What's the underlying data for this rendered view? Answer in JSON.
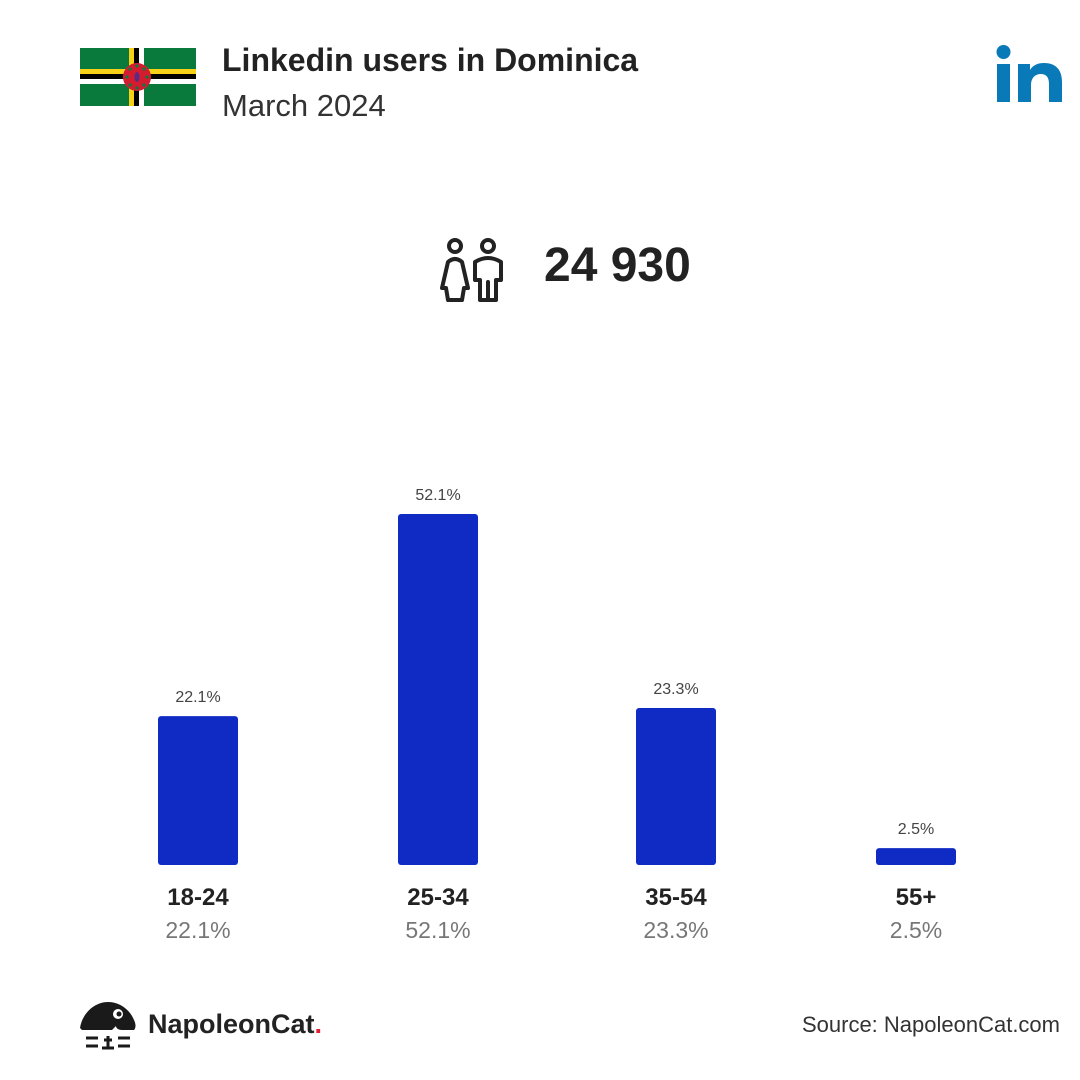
{
  "header": {
    "title": "Linkedin users in Dominica",
    "subtitle": "March 2024"
  },
  "total_users": "24 930",
  "colors": {
    "bar": "#0f2bc4",
    "linkedin": "#0a79b8",
    "flag_green": "#0a7a3c",
    "flag_red": "#d41c30"
  },
  "icons": {
    "flag": "dominica-flag-icon",
    "linkedin": "linkedin-logo-icon",
    "users": "male-female-users-icon",
    "brand": "napoleoncat-logo-icon"
  },
  "chart_data": {
    "type": "bar",
    "title": "",
    "xlabel": "",
    "ylabel": "",
    "categories": [
      "18-24",
      "25-34",
      "35-54",
      "55+"
    ],
    "values": [
      22.1,
      52.1,
      23.3,
      2.5
    ],
    "value_labels": [
      "22.1%",
      "52.1%",
      "23.3%",
      "2.5%"
    ],
    "ylim": [
      0,
      52.1
    ],
    "grid": false,
    "legend": "none"
  },
  "footer": {
    "brand_name": "NapoleonCat",
    "brand_dot": ".",
    "source": "Source: NapoleonCat.com"
  }
}
